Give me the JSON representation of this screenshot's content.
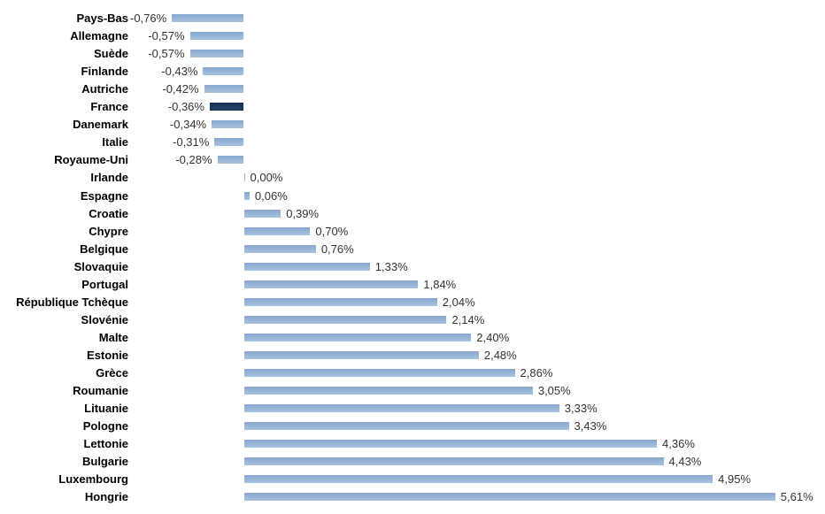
{
  "chart_data": {
    "type": "bar",
    "orientation": "horizontal",
    "title": "",
    "xlabel": "",
    "ylabel": "",
    "grid": false,
    "legend": false,
    "xlim": [
      -1.3,
      6.15
    ],
    "value_format": "percent_fr_comma",
    "bar_color": "#95B3D7",
    "highlight_color": "#1F3A60",
    "highlight_category": "France",
    "categories": [
      "Pays-Bas",
      "Allemagne",
      "Suède",
      "Finlande",
      "Autriche",
      "France",
      "Danemark",
      "Italie",
      "Royaume-Uni",
      "Irlande",
      "Espagne",
      "Croatie",
      "Chypre",
      "Belgique",
      "Slovaquie",
      "Portugal",
      "République Tchèque",
      "Slovénie",
      "Malte",
      "Estonie",
      "Grèce",
      "Roumanie",
      "Lituanie",
      "Pologne",
      "Lettonie",
      "Bulgarie",
      "Luxembourg",
      "Hongrie"
    ],
    "values": [
      -0.76,
      -0.57,
      -0.57,
      -0.43,
      -0.42,
      -0.36,
      -0.34,
      -0.31,
      -0.28,
      0.0,
      0.06,
      0.39,
      0.7,
      0.76,
      1.33,
      1.84,
      2.04,
      2.14,
      2.4,
      2.48,
      2.86,
      3.05,
      3.33,
      3.43,
      4.36,
      4.43,
      4.95,
      5.61
    ],
    "value_labels": [
      "-0,76%",
      "-0,57%",
      "-0,57%",
      "-0,43%",
      "-0,42%",
      "-0,36%",
      "-0,34%",
      "-0,31%",
      "-0,28%",
      "0,00%",
      "0,06%",
      "0,39%",
      "0,70%",
      "0,76%",
      "1,33%",
      "1,84%",
      "2,04%",
      "2,14%",
      "2,40%",
      "2,48%",
      "2,86%",
      "3,05%",
      "3,33%",
      "3,43%",
      "4,36%",
      "4,43%",
      "4,95%",
      "5,61%"
    ]
  }
}
